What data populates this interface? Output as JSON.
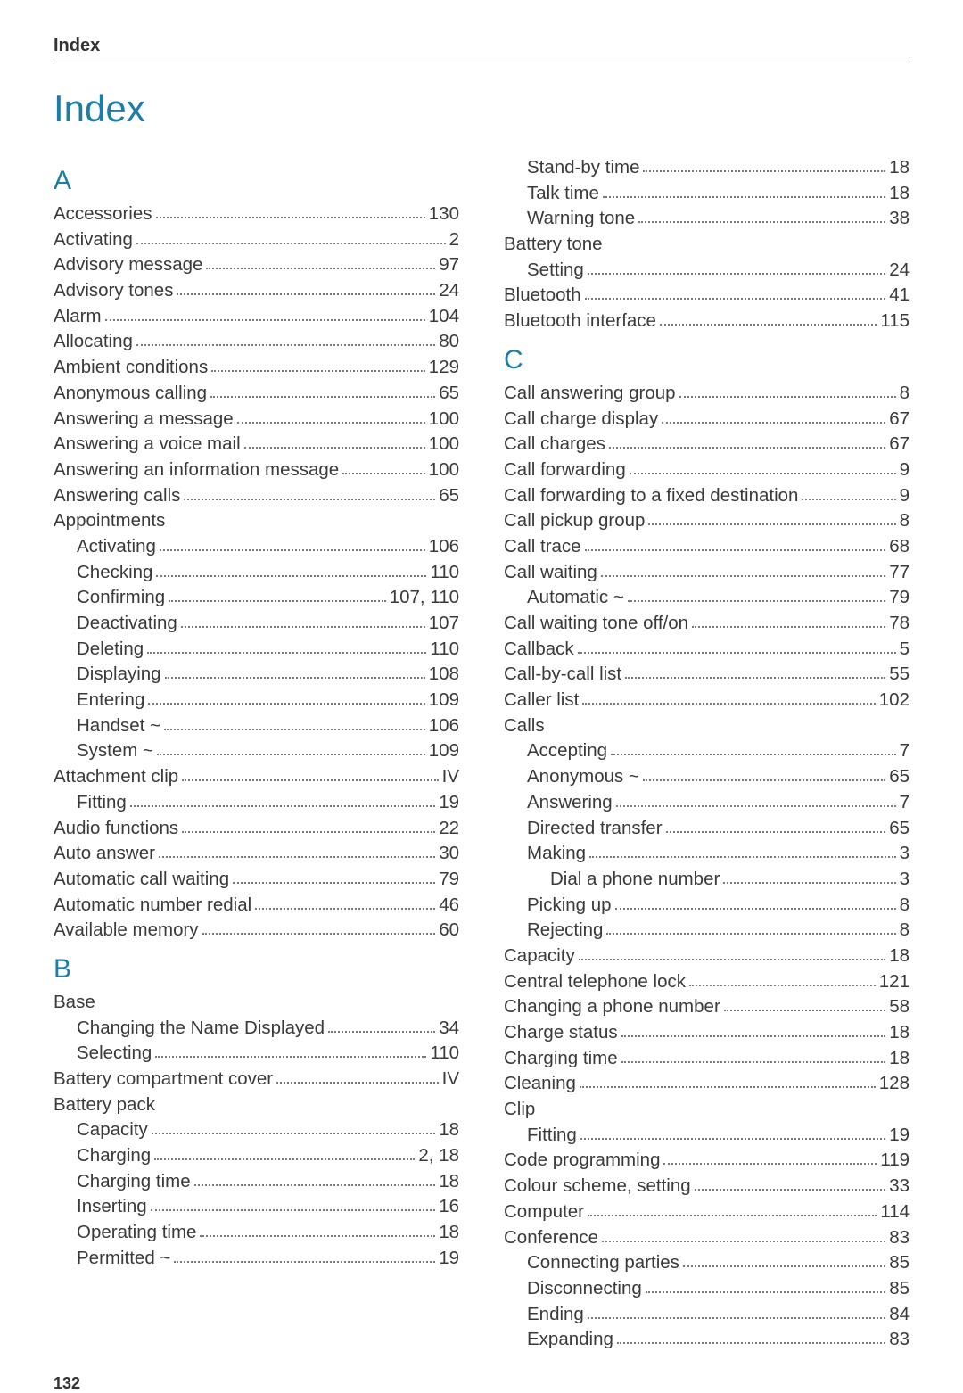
{
  "running_head": "Index",
  "page_title": "Index",
  "page_number": "132",
  "colors": {
    "accent": "#1c7da7",
    "text": "#3a3a3a",
    "dots": "#7a7a7a",
    "rule": "#555555",
    "background": "#ffffff"
  },
  "typography": {
    "font_family": "Arial",
    "body_fontsize_pt": 15,
    "title_fontsize_pt": 32,
    "letter_fontsize_pt": 22,
    "line_height": 1.4
  },
  "left_column": [
    {
      "type": "letter",
      "text": "A"
    },
    {
      "type": "entry",
      "label": "Accessories",
      "pages": "130",
      "indent": 0
    },
    {
      "type": "entry",
      "label": "Activating",
      "pages": "2",
      "indent": 0
    },
    {
      "type": "entry",
      "label": "Advisory message",
      "pages": "97",
      "indent": 0
    },
    {
      "type": "entry",
      "label": "Advisory tones",
      "pages": "24",
      "indent": 0
    },
    {
      "type": "entry",
      "label": "Alarm",
      "pages": "104",
      "indent": 0
    },
    {
      "type": "entry",
      "label": "Allocating",
      "pages": "80",
      "indent": 0
    },
    {
      "type": "entry",
      "label": "Ambient conditions",
      "pages": "129",
      "indent": 0
    },
    {
      "type": "entry",
      "label": "Anonymous calling",
      "pages": "65",
      "indent": 0
    },
    {
      "type": "entry",
      "label": "Answering a message",
      "pages": "100",
      "indent": 0
    },
    {
      "type": "entry",
      "label": "Answering a voice mail",
      "pages": "100",
      "indent": 0
    },
    {
      "type": "entry",
      "label": "Answering an information message",
      "pages": "100",
      "indent": 0
    },
    {
      "type": "entry",
      "label": "Answering calls",
      "pages": "65",
      "indent": 0
    },
    {
      "type": "heading",
      "label": "Appointments",
      "indent": 0
    },
    {
      "type": "entry",
      "label": "Activating",
      "pages": "106",
      "indent": 1
    },
    {
      "type": "entry",
      "label": "Checking",
      "pages": "110",
      "indent": 1
    },
    {
      "type": "entry",
      "label": "Confirming",
      "pages": "107, 110",
      "indent": 1
    },
    {
      "type": "entry",
      "label": "Deactivating",
      "pages": "107",
      "indent": 1
    },
    {
      "type": "entry",
      "label": "Deleting",
      "pages": "110",
      "indent": 1
    },
    {
      "type": "entry",
      "label": "Displaying",
      "pages": "108",
      "indent": 1
    },
    {
      "type": "entry",
      "label": "Entering",
      "pages": "109",
      "indent": 1
    },
    {
      "type": "entry",
      "label": "Handset ~",
      "pages": "106",
      "indent": 1
    },
    {
      "type": "entry",
      "label": "System ~",
      "pages": "109",
      "indent": 1
    },
    {
      "type": "entry",
      "label": "Attachment clip",
      "pages": "IV",
      "indent": 0
    },
    {
      "type": "entry",
      "label": "Fitting",
      "pages": "19",
      "indent": 1
    },
    {
      "type": "entry",
      "label": "Audio functions",
      "pages": "22",
      "indent": 0
    },
    {
      "type": "entry",
      "label": "Auto answer",
      "pages": "30",
      "indent": 0
    },
    {
      "type": "entry",
      "label": "Automatic call waiting",
      "pages": "79",
      "indent": 0
    },
    {
      "type": "entry",
      "label": "Automatic number redial",
      "pages": "46",
      "indent": 0
    },
    {
      "type": "entry",
      "label": "Available memory",
      "pages": "60",
      "indent": 0
    },
    {
      "type": "letter",
      "text": "B"
    },
    {
      "type": "heading",
      "label": "Base",
      "indent": 0
    },
    {
      "type": "entry",
      "label": "Changing the Name Displayed",
      "pages": "34",
      "indent": 1
    },
    {
      "type": "entry",
      "label": "Selecting",
      "pages": "110",
      "indent": 1
    },
    {
      "type": "entry",
      "label": "Battery compartment cover",
      "pages": "IV",
      "indent": 0
    },
    {
      "type": "heading",
      "label": "Battery pack",
      "indent": 0
    },
    {
      "type": "entry",
      "label": "Capacity",
      "pages": "18",
      "indent": 1
    },
    {
      "type": "entry",
      "label": "Charging",
      "pages": "2, 18",
      "indent": 1
    },
    {
      "type": "entry",
      "label": "Charging time",
      "pages": "18",
      "indent": 1
    },
    {
      "type": "entry",
      "label": "Inserting",
      "pages": "16",
      "indent": 1
    },
    {
      "type": "entry",
      "label": "Operating time",
      "pages": "18",
      "indent": 1
    },
    {
      "type": "entry",
      "label": "Permitted ~",
      "pages": "19",
      "indent": 1
    }
  ],
  "right_column": [
    {
      "type": "entry",
      "label": "Stand-by time",
      "pages": "18",
      "indent": 1
    },
    {
      "type": "entry",
      "label": "Talk time",
      "pages": "18",
      "indent": 1
    },
    {
      "type": "entry",
      "label": "Warning tone",
      "pages": "38",
      "indent": 1
    },
    {
      "type": "heading",
      "label": "Battery tone",
      "indent": 0
    },
    {
      "type": "entry",
      "label": "Setting",
      "pages": "24",
      "indent": 1
    },
    {
      "type": "entry",
      "label": "Bluetooth",
      "pages": "41",
      "indent": 0
    },
    {
      "type": "entry",
      "label": "Bluetooth interface",
      "pages": "115",
      "indent": 0
    },
    {
      "type": "letter",
      "text": "C"
    },
    {
      "type": "entry",
      "label": "Call answering group",
      "pages": "8",
      "indent": 0
    },
    {
      "type": "entry",
      "label": "Call charge display",
      "pages": "67",
      "indent": 0
    },
    {
      "type": "entry",
      "label": "Call charges",
      "pages": "67",
      "indent": 0
    },
    {
      "type": "entry",
      "label": "Call forwarding",
      "pages": "9",
      "indent": 0
    },
    {
      "type": "entry",
      "label": "Call forwarding to a fixed destination",
      "pages": "9",
      "indent": 0
    },
    {
      "type": "entry",
      "label": "Call pickup group",
      "pages": "8",
      "indent": 0
    },
    {
      "type": "entry",
      "label": "Call trace",
      "pages": "68",
      "indent": 0
    },
    {
      "type": "entry",
      "label": "Call waiting",
      "pages": "77",
      "indent": 0
    },
    {
      "type": "entry",
      "label": "Automatic ~",
      "pages": "79",
      "indent": 1
    },
    {
      "type": "entry",
      "label": "Call waiting tone off/on",
      "pages": "78",
      "indent": 0
    },
    {
      "type": "entry",
      "label": "Callback",
      "pages": "5",
      "indent": 0
    },
    {
      "type": "entry",
      "label": "Call-by-call list",
      "pages": "55",
      "indent": 0
    },
    {
      "type": "entry",
      "label": "Caller list",
      "pages": "102",
      "indent": 0
    },
    {
      "type": "heading",
      "label": "Calls",
      "indent": 0
    },
    {
      "type": "entry",
      "label": "Accepting",
      "pages": "7",
      "indent": 1
    },
    {
      "type": "entry",
      "label": "Anonymous ~",
      "pages": "65",
      "indent": 1
    },
    {
      "type": "entry",
      "label": "Answering",
      "pages": "7",
      "indent": 1
    },
    {
      "type": "entry",
      "label": "Directed transfer",
      "pages": "65",
      "indent": 1
    },
    {
      "type": "entry",
      "label": "Making",
      "pages": "3",
      "indent": 1
    },
    {
      "type": "entry",
      "label": "Dial a phone number",
      "pages": "3",
      "indent": 2
    },
    {
      "type": "entry",
      "label": "Picking up",
      "pages": "8",
      "indent": 1
    },
    {
      "type": "entry",
      "label": "Rejecting",
      "pages": "8",
      "indent": 1
    },
    {
      "type": "entry",
      "label": "Capacity",
      "pages": "18",
      "indent": 0
    },
    {
      "type": "entry",
      "label": "Central telephone lock",
      "pages": "121",
      "indent": 0
    },
    {
      "type": "entry",
      "label": "Changing a phone number",
      "pages": "58",
      "indent": 0
    },
    {
      "type": "entry",
      "label": "Charge status",
      "pages": "18",
      "indent": 0
    },
    {
      "type": "entry",
      "label": "Charging time",
      "pages": "18",
      "indent": 0
    },
    {
      "type": "entry",
      "label": "Cleaning",
      "pages": "128",
      "indent": 0
    },
    {
      "type": "heading",
      "label": "Clip",
      "indent": 0
    },
    {
      "type": "entry",
      "label": "Fitting",
      "pages": "19",
      "indent": 1
    },
    {
      "type": "entry",
      "label": "Code programming",
      "pages": "119",
      "indent": 0
    },
    {
      "type": "entry",
      "label": "Colour scheme, setting",
      "pages": "33",
      "indent": 0
    },
    {
      "type": "entry",
      "label": "Computer",
      "pages": "114",
      "indent": 0
    },
    {
      "type": "entry",
      "label": "Conference",
      "pages": "83",
      "indent": 0
    },
    {
      "type": "entry",
      "label": "Connecting parties",
      "pages": "85",
      "indent": 1
    },
    {
      "type": "entry",
      "label": "Disconnecting",
      "pages": "85",
      "indent": 1
    },
    {
      "type": "entry",
      "label": "Ending",
      "pages": "84",
      "indent": 1
    },
    {
      "type": "entry",
      "label": "Expanding",
      "pages": "83",
      "indent": 1
    }
  ]
}
